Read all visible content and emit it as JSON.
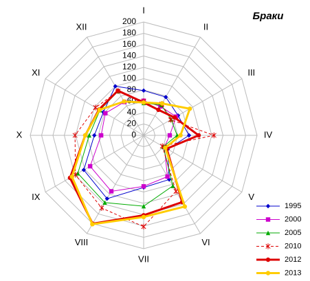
{
  "chart_data": {
    "type": "radar",
    "title": "Браки",
    "categories": [
      "I",
      "II",
      "III",
      "IV",
      "V",
      "VI",
      "VII",
      "VIII",
      "IX",
      "X",
      "XI",
      "XII"
    ],
    "ylim": [
      0,
      200
    ],
    "yticks": [
      0,
      20,
      40,
      60,
      80,
      100,
      120,
      140,
      160,
      180,
      200
    ],
    "grid": true,
    "legend": "bottom-right",
    "series": [
      {
        "name": "1995",
        "color": "#0000cc",
        "marker": "diamond",
        "line_width": 1,
        "dashed": false,
        "values": [
          79,
          78,
          70,
          80,
          49,
          90,
          92,
          129,
          122,
          87,
          82,
          100
        ]
      },
      {
        "name": "2000",
        "color": "#cc00cc",
        "marker": "square",
        "line_width": 1,
        "dashed": false,
        "values": [
          61,
          59,
          66,
          46,
          42,
          84,
          90,
          114,
          109,
          75,
          78,
          68
        ]
      },
      {
        "name": "2005",
        "color": "#00aa00",
        "marker": "triangle",
        "line_width": 1,
        "dashed": false,
        "values": [
          57,
          62,
          56,
          59,
          40,
          103,
          125,
          137,
          134,
          96,
          89,
          90
        ]
      },
      {
        "name": "2010",
        "color": "#dd0000",
        "marker": "star",
        "line_width": 1,
        "dashed": true,
        "values": [
          60,
          64,
          55,
          124,
          38,
          114,
          161,
          148,
          139,
          121,
          98,
          90
        ]
      },
      {
        "name": "2012",
        "color": "#dd0000",
        "marker": "circle",
        "line_width": 3,
        "dashed": false,
        "values": [
          58,
          52,
          63,
          97,
          47,
          136,
          141,
          180,
          150,
          103,
          91,
          91
        ]
      },
      {
        "name": "2013",
        "color": "#ffcc00",
        "marker": "circle",
        "line_width": 3,
        "dashed": false,
        "values": [
          58,
          65,
          94,
          65,
          44,
          145,
          144,
          181,
          146,
          103,
          90,
          69
        ]
      }
    ]
  }
}
